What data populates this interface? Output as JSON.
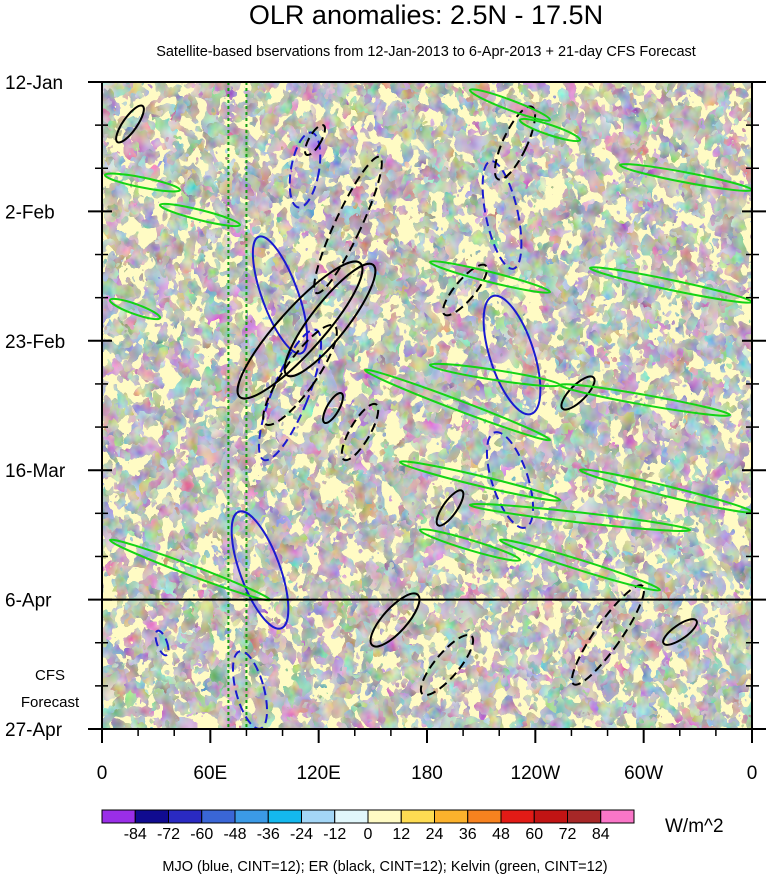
{
  "chart_data": {
    "type": "heatmap",
    "title": "OLR anomalies: 2.5N - 17.5N",
    "subtitle": "Satellite-based bservations from 12-Jan-2013 to 6-Apr-2013 + 21-day CFS Forecast",
    "x_ticks": [
      {
        "label": "0",
        "lon": 0
      },
      {
        "label": "60E",
        "lon": 60
      },
      {
        "label": "120E",
        "lon": 120
      },
      {
        "label": "180",
        "lon": 180
      },
      {
        "label": "120W",
        "lon": 240
      },
      {
        "label": "60W",
        "lon": 300
      },
      {
        "label": "0",
        "lon": 360
      }
    ],
    "x_range": [
      0,
      360
    ],
    "y_ticks": [
      {
        "label": "12-Jan",
        "day": 0
      },
      {
        "label": "2-Feb",
        "day": 21
      },
      {
        "label": "23-Feb",
        "day": 42
      },
      {
        "label": "16-Mar",
        "day": 63
      },
      {
        "label": "6-Apr",
        "day": 84
      },
      {
        "label": "27-Apr",
        "day": 105
      }
    ],
    "y_range_days": [
      0,
      105
    ],
    "forecast_start": "6-Apr",
    "forecast_label": [
      "CFS",
      "Forecast"
    ],
    "colorbar": {
      "units": "W/m^2",
      "labels": [
        "-84",
        "-72",
        "-60",
        "-48",
        "-36",
        "-24",
        "-12",
        "0",
        "12",
        "24",
        "36",
        "48",
        "60",
        "72",
        "84"
      ],
      "levels": [
        -84,
        -72,
        -60,
        -48,
        -36,
        -24,
        -12,
        0,
        12,
        24,
        36,
        48,
        60,
        72,
        84
      ],
      "colors": [
        "#9a2ee8",
        "#100b90",
        "#2a2ac2",
        "#3a66d6",
        "#3b9ae6",
        "#14b8ee",
        "#a3d6f6",
        "#e1f7fb",
        "#fffbc4",
        "#fedc52",
        "#fcb22c",
        "#f7821f",
        "#e21b16",
        "#c11414",
        "#a72727",
        "#fa76c8"
      ]
    },
    "reference_lines_lon": [
      70,
      80
    ],
    "series": [
      {
        "name": "MJO",
        "color": "#1a1ad0"
      },
      {
        "name": "ER",
        "color": "#000000"
      },
      {
        "name": "Kelvin",
        "color": "#14d414"
      }
    ],
    "footer": "MJO (blue, CINT=12); ER (black, CINT=12); Kelvin (green, CINT=12)",
    "grid": false
  }
}
